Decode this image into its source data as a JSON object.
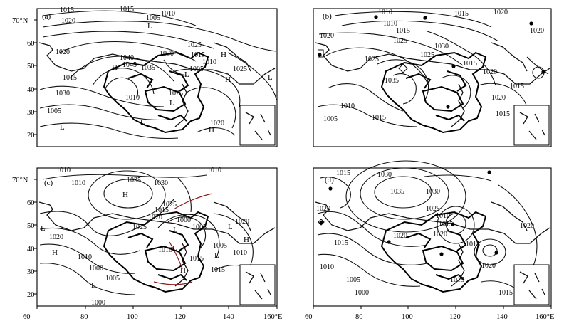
{
  "panels": [
    {
      "id": "a",
      "tag": "(a)",
      "lat_labels": [
        "70°N",
        "60",
        "50",
        "40",
        "30",
        "20"
      ],
      "lon_labels": [],
      "isobar_labels": [
        "1015",
        "1020",
        "1015",
        "1005",
        "1010",
        "1025",
        "1020",
        "1040",
        "1045",
        "1035",
        "1030",
        "1015",
        "1010",
        "1005",
        "1025",
        "1015",
        "1030",
        "1010",
        "1005",
        "1025",
        "1020"
      ],
      "system_marks": [
        "L",
        "H",
        "H",
        "L",
        "L",
        "L",
        "H",
        "L",
        "L",
        "H"
      ]
    },
    {
      "id": "b",
      "tag": "(b)",
      "lat_labels": [],
      "lon_labels": [],
      "isobar_labels": [
        "1010",
        "1015",
        "1020",
        "1010",
        "1015",
        "1025",
        "1020",
        "1025",
        "1030",
        "1035",
        "1025",
        "1015",
        "1020",
        "1020",
        "1015",
        "1010",
        "1005",
        "1015",
        "1015",
        "1020"
      ],
      "system_marks": []
    },
    {
      "id": "c",
      "tag": "(c)",
      "lat_labels": [
        "70°N",
        "60",
        "50",
        "40",
        "30",
        "20"
      ],
      "lon_labels": [
        "60",
        "80",
        "100",
        "120",
        "140",
        "160°E"
      ],
      "isobar_labels": [
        "1010",
        "1010",
        "1035",
        "1030",
        "1010",
        "1015",
        "1020",
        "1025",
        "1025",
        "1000",
        "1005",
        "1020",
        "1020",
        "1010",
        "1010",
        "1005",
        "1015",
        "1010",
        "1000",
        "1005",
        "1015",
        "1000"
      ],
      "system_marks": [
        "H",
        "L",
        "L",
        "H",
        "L",
        "L",
        "L",
        "H",
        "L",
        "H"
      ]
    },
    {
      "id": "d",
      "tag": "(d)",
      "lat_labels": [],
      "lon_labels": [
        "60",
        "80",
        "100",
        "120",
        "140",
        "160°E"
      ],
      "isobar_labels": [
        "1015",
        "1030",
        "1035",
        "1030",
        "1020",
        "1025",
        "1020",
        "1010",
        "1015",
        "1020",
        "1020",
        "1015",
        "1010",
        "1005",
        "1000",
        "1015",
        "1015",
        "1020",
        "1015"
      ],
      "system_marks": []
    }
  ]
}
